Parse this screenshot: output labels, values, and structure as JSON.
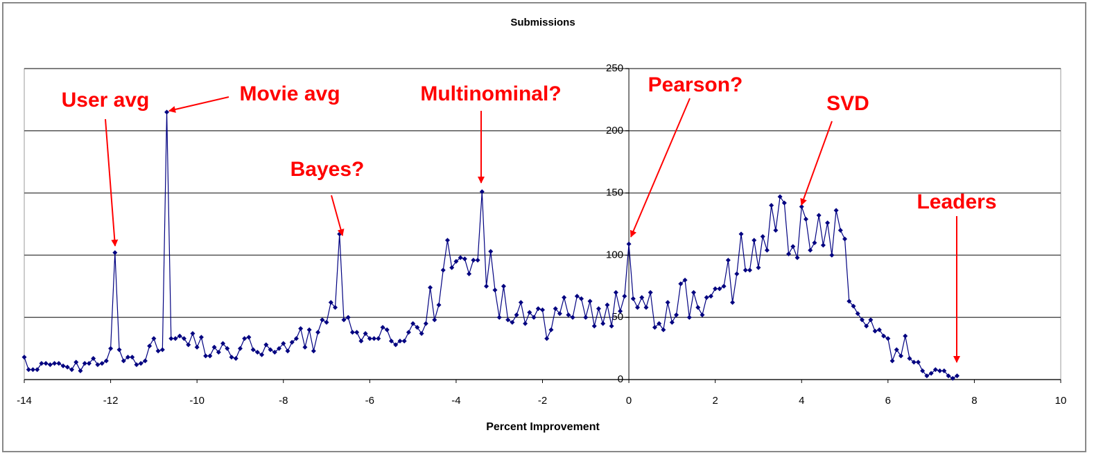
{
  "chart_data": {
    "type": "line",
    "title": "Submissions",
    "x_label": "Percent Improvement",
    "color": "#000080",
    "annotation_color": "#ff0000",
    "grid": true,
    "xlim": [
      -14,
      10
    ],
    "xticks": [
      -14,
      -12,
      -10,
      -8,
      -6,
      -4,
      -2,
      0,
      2,
      4,
      6,
      8,
      10
    ],
    "ylim": [
      0,
      250
    ],
    "yticks": [
      0,
      50,
      100,
      150,
      200,
      250
    ],
    "annotations": [
      "User avg",
      "Movie avg",
      "Bayes?",
      "Multinominal?",
      "Pearson?",
      "SVD",
      "Leaders"
    ],
    "x": [
      -14,
      -13.9,
      -13.8,
      -13.7,
      -13.6,
      -13.5,
      -13.4,
      -13.3,
      -13.2,
      -13.1,
      -13,
      -12.9,
      -12.8,
      -12.7,
      -12.6,
      -12.5,
      -12.4,
      -12.3,
      -12.2,
      -12.1,
      -12,
      -11.9,
      -11.8,
      -11.7,
      -11.6,
      -11.5,
      -11.4,
      -11.3,
      -11.2,
      -11.1,
      -11,
      -10.9,
      -10.8,
      -10.7,
      -10.6,
      -10.5,
      -10.4,
      -10.3,
      -10.2,
      -10.1,
      -10,
      -9.9,
      -9.8,
      -9.7,
      -9.6,
      -9.5,
      -9.4,
      -9.3,
      -9.2,
      -9.1,
      -9,
      -8.9,
      -8.8,
      -8.7,
      -8.6,
      -8.5,
      -8.4,
      -8.3,
      -8.2,
      -8.1,
      -8,
      -7.9,
      -7.8,
      -7.7,
      -7.6,
      -7.5,
      -7.4,
      -7.3,
      -7.2,
      -7.1,
      -7,
      -6.9,
      -6.8,
      -6.7,
      -6.6,
      -6.5,
      -6.4,
      -6.3,
      -6.2,
      -6.1,
      -6,
      -5.9,
      -5.8,
      -5.7,
      -5.6,
      -5.5,
      -5.4,
      -5.3,
      -5.2,
      -5.1,
      -5,
      -4.9,
      -4.8,
      -4.7,
      -4.6,
      -4.5,
      -4.4,
      -4.3,
      -4.2,
      -4.1,
      -4,
      -3.9,
      -3.8,
      -3.7,
      -3.6,
      -3.5,
      -3.4,
      -3.3,
      -3.2,
      -3.1,
      -3,
      -2.9,
      -2.8,
      -2.7,
      -2.6,
      -2.5,
      -2.4,
      -2.3,
      -2.2,
      -2.1,
      -2,
      -1.9,
      -1.8,
      -1.7,
      -1.6,
      -1.5,
      -1.4,
      -1.3,
      -1.2,
      -1.1,
      -1,
      -0.9,
      -0.8,
      -0.7,
      -0.6,
      -0.5,
      -0.4,
      -0.3,
      -0.2,
      -0.1,
      0,
      0.1,
      0.2,
      0.3,
      0.4,
      0.5,
      0.6,
      0.7,
      0.8,
      0.9,
      1,
      1.1,
      1.2,
      1.3,
      1.4,
      1.5,
      1.6,
      1.7,
      1.8,
      1.9,
      2,
      2.1,
      2.2,
      2.3,
      2.4,
      2.5,
      2.6,
      2.7,
      2.8,
      2.9,
      3,
      3.1,
      3.2,
      3.3,
      3.4,
      3.5,
      3.6,
      3.7,
      3.8,
      3.9,
      4,
      4.1,
      4.2,
      4.3,
      4.4,
      4.5,
      4.6,
      4.7,
      4.8,
      4.9,
      5,
      5.1,
      5.2,
      5.3,
      5.4,
      5.5,
      5.6,
      5.7,
      5.8,
      5.9,
      6,
      6.1,
      6.2,
      6.3,
      6.4,
      6.5,
      6.6,
      6.7,
      6.8,
      6.9,
      7,
      7.1,
      7.2,
      7.3,
      7.4,
      7.5,
      7.6
    ],
    "values": [
      18,
      8,
      8,
      8,
      13,
      13,
      12,
      13,
      13,
      11,
      10,
      8,
      14,
      7,
      13,
      13,
      17,
      12,
      13,
      15,
      25,
      102,
      24,
      15,
      18,
      18,
      12,
      13,
      15,
      27,
      33,
      23,
      24,
      215,
      33,
      33,
      35,
      33,
      28,
      37,
      26,
      34,
      19,
      19,
      26,
      22,
      29,
      25,
      18,
      17,
      25,
      33,
      34,
      24,
      22,
      20,
      28,
      24,
      22,
      25,
      29,
      23,
      30,
      33,
      41,
      26,
      40,
      23,
      38,
      48,
      46,
      62,
      58,
      117,
      48,
      50,
      38,
      38,
      31,
      37,
      33,
      33,
      33,
      42,
      40,
      31,
      28,
      31,
      31,
      38,
      45,
      42,
      37,
      45,
      74,
      48,
      60,
      88,
      112,
      90,
      95,
      98,
      97,
      85,
      96,
      96,
      151,
      75,
      103,
      72,
      50,
      75,
      48,
      46,
      52,
      62,
      45,
      54,
      50,
      57,
      56,
      33,
      40,
      57,
      53,
      66,
      52,
      50,
      67,
      65,
      50,
      63,
      43,
      57,
      45,
      60,
      43,
      70,
      55,
      67,
      109,
      65,
      58,
      66,
      58,
      70,
      42,
      45,
      40,
      62,
      46,
      52,
      77,
      80,
      50,
      70,
      58,
      52,
      66,
      67,
      73,
      73,
      75,
      96,
      62,
      85,
      117,
      88,
      88,
      112,
      90,
      115,
      104,
      140,
      120,
      147,
      142,
      101,
      107,
      98,
      139,
      129,
      104,
      110,
      132,
      108,
      126,
      100,
      136,
      120,
      113,
      63,
      59,
      53,
      48,
      43,
      48,
      39,
      40,
      35,
      33,
      15,
      24,
      19,
      35,
      17,
      14,
      14,
      7,
      3,
      5,
      8,
      7,
      7,
      3,
      1,
      3
    ]
  }
}
